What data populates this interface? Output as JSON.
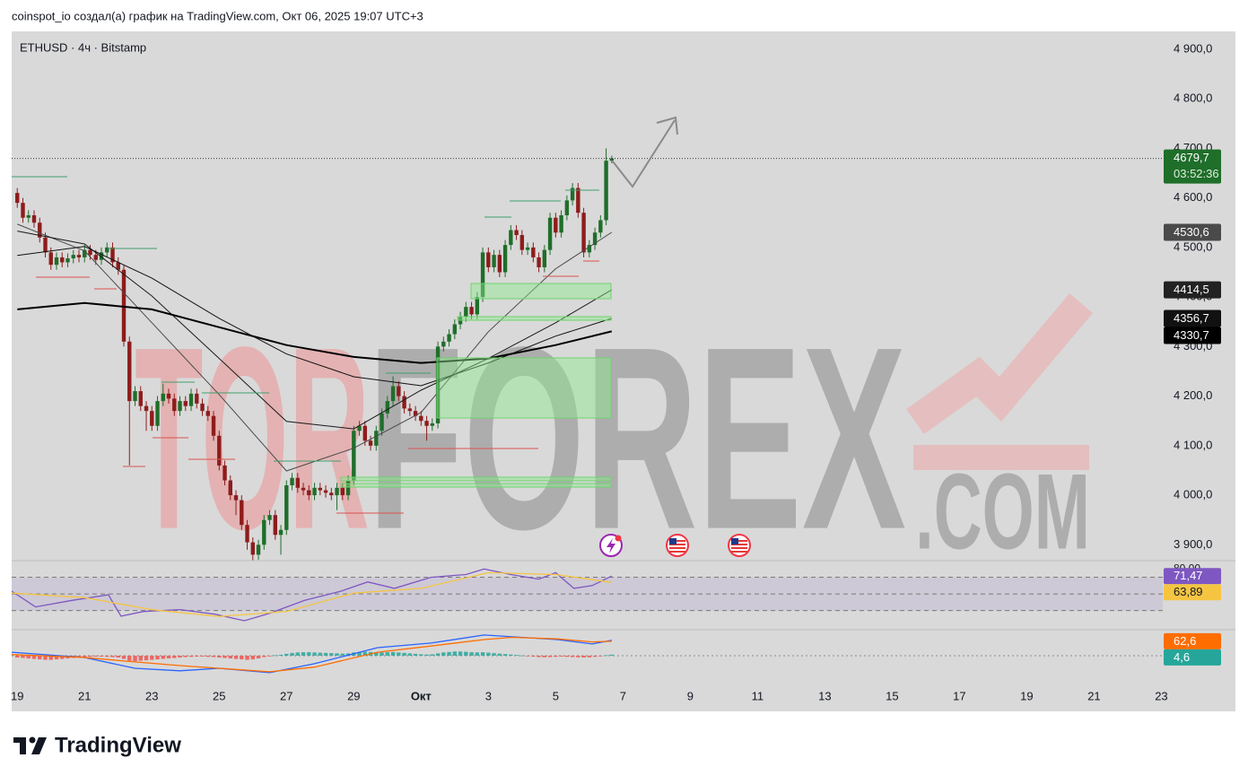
{
  "header": {
    "text": "coinspot_io создал(а) график на TradingView.com, Окт 06, 2025 19:07 UTC+3"
  },
  "footer": {
    "brand": "TradingView"
  },
  "watermark": {
    "part1": "TOR",
    "part2": "FOREX",
    "part3": ".COM"
  },
  "chart_data": [
    {
      "type": "candlestick",
      "title": "ETHUSD · 4ч · Bitstamp",
      "up_color": "#1f6e2a",
      "down_color": "#8e1c1c",
      "x": [
        0,
        4,
        8,
        12,
        16,
        20,
        24,
        28,
        32,
        36,
        40,
        44,
        48,
        52,
        56,
        60,
        64,
        68,
        72,
        76,
        80,
        84,
        88,
        92,
        96,
        100,
        104,
        108,
        112,
        116,
        120,
        124,
        128,
        132,
        136,
        140,
        144,
        148,
        152,
        156,
        160,
        164,
        168,
        172,
        176,
        180,
        184,
        188,
        192,
        196,
        200,
        204,
        208,
        212,
        216,
        220,
        224,
        228,
        232,
        236,
        240,
        244,
        248,
        252,
        256,
        260,
        264,
        268,
        272,
        276,
        280,
        284,
        288,
        292,
        296,
        300,
        304,
        308,
        312,
        316,
        320,
        324,
        328,
        332,
        336,
        340,
        344,
        348,
        352,
        356,
        360,
        364,
        368,
        372,
        376,
        380,
        384,
        388,
        392,
        396,
        400,
        404,
        408,
        412,
        416,
        420,
        424
      ],
      "open": [
        4610,
        4590,
        4560,
        4565,
        4550,
        4520,
        4490,
        4465,
        4480,
        4470,
        4478,
        4485,
        4480,
        4495,
        4485,
        4475,
        4490,
        4500,
        4470,
        4455,
        4310,
        4190,
        4210,
        4180,
        4170,
        4140,
        4190,
        4205,
        4195,
        4170,
        4190,
        4180,
        4205,
        4185,
        4170,
        4160,
        4120,
        4060,
        4030,
        4000,
        3990,
        3940,
        3905,
        3880,
        3900,
        3950,
        3960,
        3920,
        3930,
        4020,
        4035,
        4015,
        4010,
        4000,
        4015,
        4010,
        4005,
        4000,
        4015,
        4000,
        4030,
        4130,
        4140,
        4110,
        4100,
        4130,
        4165,
        4190,
        4220,
        4200,
        4175,
        4170,
        4160,
        4150,
        4140,
        4145,
        4300,
        4310,
        4325,
        4345,
        4360,
        4380,
        4365,
        4400,
        4490,
        4460,
        4485,
        4450,
        4505,
        4535,
        4525,
        4495,
        4500,
        4480,
        4460,
        4495,
        4560,
        4530,
        4565,
        4595,
        4620,
        4570,
        4490,
        4505,
        4530,
        4555,
        4675
      ],
      "high": [
        4620,
        4600,
        4575,
        4575,
        4560,
        4530,
        4500,
        4490,
        4490,
        4488,
        4495,
        4495,
        4505,
        4505,
        4495,
        4500,
        4510,
        4510,
        4480,
        4465,
        4320,
        4220,
        4220,
        4190,
        4180,
        4200,
        4225,
        4215,
        4205,
        4200,
        4200,
        4215,
        4215,
        4195,
        4180,
        4170,
        4130,
        4070,
        4040,
        4010,
        4000,
        3950,
        3915,
        3910,
        3960,
        3970,
        3970,
        3940,
        4030,
        4045,
        4045,
        4025,
        4020,
        4025,
        4025,
        4020,
        4015,
        4025,
        4025,
        4040,
        4140,
        4150,
        4150,
        4120,
        4140,
        4175,
        4200,
        4240,
        4230,
        4210,
        4185,
        4180,
        4170,
        4160,
        4155,
        4310,
        4320,
        4335,
        4355,
        4370,
        4390,
        4390,
        4410,
        4500,
        4500,
        4495,
        4495,
        4515,
        4545,
        4545,
        4535,
        4510,
        4510,
        4490,
        4505,
        4570,
        4570,
        4575,
        4605,
        4630,
        4630,
        4580,
        4515,
        4540,
        4565,
        4700,
        4685
      ],
      "low": [
        4580,
        4550,
        4550,
        4540,
        4510,
        4480,
        4455,
        4455,
        4460,
        4460,
        4468,
        4470,
        4470,
        4475,
        4465,
        4465,
        4480,
        4460,
        4445,
        4300,
        4060,
        4180,
        4170,
        4130,
        4130,
        4130,
        4180,
        4185,
        4160,
        4160,
        4170,
        4170,
        4175,
        4160,
        4150,
        4110,
        4050,
        4020,
        3990,
        3960,
        3930,
        3890,
        3868,
        3870,
        3890,
        3940,
        3910,
        3880,
        3920,
        4010,
        4005,
        4000,
        3990,
        3990,
        4000,
        3995,
        3990,
        3970,
        3990,
        3990,
        4020,
        4120,
        4100,
        4090,
        4090,
        4120,
        4155,
        4180,
        4190,
        4165,
        4160,
        4150,
        4140,
        4110,
        4130,
        4135,
        4290,
        4300,
        4315,
        4335,
        4350,
        4355,
        4355,
        4390,
        4450,
        4450,
        4440,
        4440,
        4495,
        4515,
        4485,
        4485,
        4470,
        4450,
        4450,
        4485,
        4520,
        4520,
        4555,
        4585,
        4560,
        4480,
        4480,
        4495,
        4520,
        4545,
        4670
      ],
      "close": [
        4590,
        4560,
        4565,
        4550,
        4520,
        4490,
        4465,
        4480,
        4470,
        4478,
        4485,
        4480,
        4495,
        4485,
        4475,
        4490,
        4500,
        4470,
        4455,
        4310,
        4190,
        4210,
        4180,
        4170,
        4140,
        4190,
        4205,
        4195,
        4170,
        4190,
        4180,
        4205,
        4185,
        4170,
        4160,
        4120,
        4060,
        4030,
        4000,
        3990,
        3940,
        3905,
        3880,
        3900,
        3950,
        3960,
        3920,
        3930,
        4020,
        4035,
        4015,
        4010,
        4000,
        4015,
        4010,
        4005,
        4000,
        4015,
        4000,
        4030,
        4130,
        4140,
        4110,
        4100,
        4130,
        4165,
        4190,
        4220,
        4200,
        4175,
        4170,
        4160,
        4150,
        4140,
        4145,
        4300,
        4310,
        4325,
        4345,
        4360,
        4380,
        4365,
        4400,
        4490,
        4460,
        4485,
        4450,
        4505,
        4535,
        4525,
        4495,
        4500,
        4480,
        4460,
        4495,
        4560,
        4530,
        4565,
        4595,
        4620,
        4570,
        4490,
        4505,
        4530,
        4555,
        4675,
        4679.7
      ],
      "last_price": 4679.7,
      "last_price_label": "4679,7",
      "last_price_color": "#1f6e2a",
      "countdown": "03:52:36",
      "xlim": [
        -4,
        817
      ],
      "xticks": [
        {
          "value": 0,
          "label": "19"
        },
        {
          "value": 48,
          "label": "21"
        },
        {
          "value": 96,
          "label": "23"
        },
        {
          "value": 144,
          "label": "25"
        },
        {
          "value": 192,
          "label": "27"
        },
        {
          "value": 240,
          "label": "29"
        },
        {
          "value": 288,
          "label": "Окт"
        },
        {
          "value": 336,
          "label": "3"
        },
        {
          "value": 384,
          "label": "5"
        },
        {
          "value": 432,
          "label": "7"
        },
        {
          "value": 480,
          "label": "9"
        },
        {
          "value": 528,
          "label": "11"
        },
        {
          "value": 576,
          "label": "13"
        },
        {
          "value": 624,
          "label": "15"
        },
        {
          "value": 672,
          "label": "17"
        },
        {
          "value": 720,
          "label": "19"
        },
        {
          "value": 768,
          "label": "21"
        },
        {
          "value": 816,
          "label": "23"
        }
      ],
      "ylim": [
        3868,
        4936
      ],
      "yticks": [
        {
          "value": 3900,
          "label": "3 900,0"
        },
        {
          "value": 4000,
          "label": "4 000,0"
        },
        {
          "value": 4100,
          "label": "4 100,0"
        },
        {
          "value": 4200,
          "label": "4 200,0"
        },
        {
          "value": 4300,
          "label": "4 300,0"
        },
        {
          "value": 4400,
          "label": "4 400,0"
        },
        {
          "value": 4500,
          "label": "4 500,0"
        },
        {
          "value": 4600,
          "label": "4 600,0"
        },
        {
          "value": 4700,
          "label": "4 700,0"
        },
        {
          "value": 4800,
          "label": "4 800,0"
        },
        {
          "value": 4900,
          "label": "4 900,0"
        }
      ],
      "grid": false,
      "moving_averages": [
        {
          "color": "#4a4a4a",
          "width": 1,
          "x": [
            0,
            48,
            96,
            144,
            192,
            240,
            288,
            336,
            384,
            424
          ],
          "values": [
            4547,
            4493,
            4348,
            4203,
            4049,
            4095,
            4167,
            4330,
            4457,
            4530.6
          ],
          "value_label": "4530,6",
          "label_color": "#4a4a4a"
        },
        {
          "color": "#1a1a1a",
          "width": 1,
          "x": [
            0,
            48,
            96,
            144,
            192,
            240,
            288,
            336,
            384,
            424
          ],
          "values": [
            4533,
            4507,
            4402,
            4276,
            4149,
            4134,
            4212,
            4276,
            4348,
            4414.5
          ],
          "value_label": "4414,5",
          "label_color": "#222222"
        },
        {
          "color": "#111111",
          "width": 1,
          "x": [
            0,
            48,
            96,
            144,
            192,
            240,
            288,
            336,
            384,
            424
          ],
          "values": [
            4484,
            4502,
            4438,
            4357,
            4285,
            4239,
            4221,
            4267,
            4321,
            4356.7
          ],
          "value_label": "4356,7",
          "label_color": "#111111"
        },
        {
          "color": "#000000",
          "width": 2,
          "x": [
            0,
            48,
            96,
            144,
            192,
            240,
            288,
            336,
            384,
            424
          ],
          "values": [
            4375,
            4388,
            4375,
            4339,
            4303,
            4279,
            4267,
            4276,
            4303,
            4330.7
          ],
          "value_label": "4330,7",
          "label_color": "#000000"
        }
      ]
    },
    {
      "type": "line",
      "ylim": [
        7,
        90
      ],
      "yticks": [
        {
          "value": 80,
          "label": "80,00"
        }
      ],
      "levels": [
        70,
        50,
        30
      ],
      "band_color": "#7e57c2",
      "series": [
        {
          "color": "#7e57c2",
          "x": [
            -4,
            13,
            39,
            65,
            74,
            90,
            116,
            141,
            162,
            180,
            205,
            231,
            250,
            269,
            295,
            320,
            333,
            352,
            372,
            384,
            397,
            410,
            424
          ],
          "values": [
            53.3,
            34.4,
            42.2,
            48.9,
            23.3,
            28.9,
            31.1,
            25.6,
            17.8,
            26.7,
            42.2,
            53.3,
            64.4,
            56.7,
            70,
            73.3,
            80,
            73.3,
            67.8,
            75.6,
            56.7,
            60,
            71.47
          ],
          "value_label": "71,47",
          "label_text_color": "#ffffff"
        },
        {
          "color": "#f5c542",
          "x": [
            -4,
            48,
            96,
            144,
            192,
            240,
            288,
            336,
            384,
            424
          ],
          "values": [
            51,
            45.6,
            31,
            23,
            29,
            51,
            56.7,
            75.6,
            73.3,
            63.89
          ],
          "value_label": "63,89",
          "label_text_color": "#131722"
        }
      ]
    },
    {
      "type": "line",
      "ylim": [
        -133,
        113
      ],
      "zero_line": true,
      "histogram": {
        "up_color": "#26a69a",
        "down_color": "#ef5350",
        "values": [
          -8,
          -10,
          -12,
          -14,
          -16,
          -18,
          -18,
          -16,
          -14,
          -12,
          -10,
          -8,
          -6,
          -5,
          -4,
          -4,
          -5,
          -6,
          -8,
          -14,
          -22,
          -24,
          -22,
          -20,
          -18,
          -16,
          -14,
          -12,
          -10,
          -8,
          -6,
          -5,
          -4,
          -4,
          -5,
          -6,
          -8,
          -10,
          -12,
          -14,
          -16,
          -18,
          -16,
          -12,
          -6,
          -2,
          2,
          4,
          8,
          12,
          14,
          15,
          15,
          14,
          13,
          12,
          11,
          10,
          9,
          10,
          14,
          16,
          17,
          16,
          15,
          14,
          15,
          16,
          14,
          12,
          10,
          8,
          6,
          5,
          6,
          10,
          14,
          16,
          18,
          18,
          17,
          15,
          14,
          15,
          13,
          11,
          9,
          7,
          5,
          3,
          1,
          -2,
          -4,
          -6,
          -7,
          -6,
          -5,
          -4,
          -5,
          -6,
          -7,
          -8,
          -7,
          -5,
          -2,
          2,
          4.6
        ],
        "value_label": "4,6"
      },
      "series": [
        {
          "color": "#2962ff",
          "x": [
            -4,
            48,
            84,
            116,
            144,
            180,
            212,
            257,
            295,
            333,
            353,
            385,
            410,
            424
          ],
          "values": [
            15,
            -8,
            -55,
            -66,
            -55,
            -74,
            -35,
            35,
            55,
            90,
            82,
            70,
            51,
            67
          ]
        },
        {
          "color": "#ff6d00",
          "x": [
            -4,
            48,
            84,
            116,
            144,
            180,
            212,
            257,
            295,
            333,
            353,
            385,
            410,
            424
          ],
          "values": [
            5,
            -8,
            -27,
            -43,
            -55,
            -70,
            -50,
            15,
            42,
            70,
            80,
            73,
            60,
            62.6
          ],
          "value_label": "62,6",
          "label_text_color": "#ffffff"
        }
      ]
    }
  ]
}
